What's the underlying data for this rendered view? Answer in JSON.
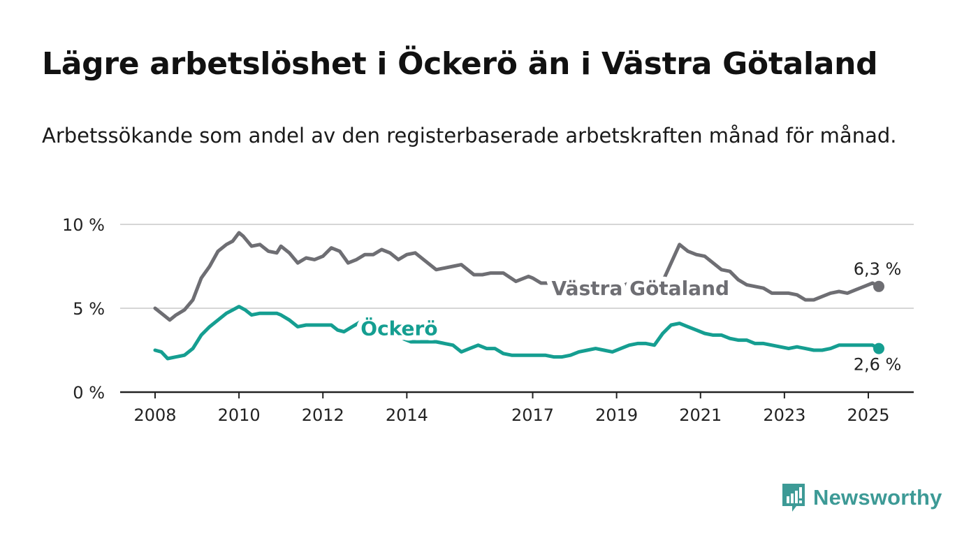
{
  "header": {
    "title": "Lägre arbetslöshet i Öckerö än i Västra Götaland",
    "subtitle": "Arbetssökande som andel av den registerbaserade arbetskraften månad för månad."
  },
  "branding": {
    "name": "Newsworthy",
    "icon": "bar-chart-speech-bubble-icon",
    "color": "#3d9a96"
  },
  "chart_data": {
    "type": "line",
    "title": "Lägre arbetslöshet i Öckerö än i Västra Götaland",
    "subtitle": "Arbetssökande som andel av den registerbaserade arbetskraften månad för månad.",
    "xlabel": "",
    "ylabel": "",
    "ylim": [
      0,
      10
    ],
    "yticks": [
      0,
      5,
      10
    ],
    "ytick_labels": [
      "0 %",
      "5 %",
      "10 %"
    ],
    "xlim": [
      2008.0,
      2025.5
    ],
    "xticks": [
      2008,
      2010,
      2012,
      2014,
      2017,
      2019,
      2021,
      2023,
      2025
    ],
    "xtick_labels": [
      "2008",
      "2010",
      "2012",
      "2014",
      "2017",
      "2019",
      "2021",
      "2023",
      "2025"
    ],
    "grid": "horizontal",
    "legend": "inline labels on lines",
    "series": [
      {
        "name": "Västra Götaland",
        "color": "#6e6e73",
        "end_label": "6,3 %",
        "x": [
          2008.0,
          2008.2,
          2008.35,
          2008.5,
          2008.7,
          2008.9,
          2009.1,
          2009.3,
          2009.5,
          2009.7,
          2009.85,
          2010.0,
          2010.1,
          2010.3,
          2010.5,
          2010.7,
          2010.9,
          2011.0,
          2011.2,
          2011.4,
          2011.6,
          2011.8,
          2012.0,
          2012.2,
          2012.4,
          2012.6,
          2012.8,
          2013.0,
          2013.2,
          2013.4,
          2013.6,
          2013.8,
          2014.0,
          2014.2,
          2014.4,
          2014.7,
          2014.9,
          2015.1,
          2015.3,
          2015.6,
          2015.8,
          2016.0,
          2016.3,
          2016.6,
          2016.9,
          2017.0,
          2017.2,
          2017.5,
          2017.7,
          2017.9,
          2018.1,
          2018.3,
          2018.5,
          2018.7,
          2018.9,
          2019.1,
          2019.3,
          2019.5,
          2019.7,
          2019.9,
          2020.1,
          2020.3,
          2020.5,
          2020.7,
          2020.9,
          2021.1,
          2021.3,
          2021.5,
          2021.7,
          2021.9,
          2022.1,
          2022.3,
          2022.5,
          2022.7,
          2022.9,
          2023.1,
          2023.3,
          2023.5,
          2023.7,
          2023.9,
          2024.1,
          2024.3,
          2024.5,
          2024.7,
          2024.9,
          2025.1,
          2025.25
        ],
        "values": [
          5.0,
          4.6,
          4.3,
          4.6,
          4.9,
          5.5,
          6.8,
          7.5,
          8.4,
          8.8,
          9.0,
          9.5,
          9.3,
          8.7,
          8.8,
          8.4,
          8.3,
          8.7,
          8.3,
          7.7,
          8.0,
          7.9,
          8.1,
          8.6,
          8.4,
          7.7,
          7.9,
          8.2,
          8.2,
          8.5,
          8.3,
          7.9,
          8.2,
          8.3,
          7.9,
          7.3,
          7.4,
          7.5,
          7.6,
          7.0,
          7.0,
          7.1,
          7.1,
          6.6,
          6.9,
          6.8,
          6.5,
          6.5,
          6.3,
          6.2,
          6.2,
          6.3,
          6.3,
          6.4,
          6.5,
          6.3,
          6.5,
          6.6,
          6.5,
          6.4,
          6.6,
          7.7,
          8.8,
          8.4,
          8.2,
          8.1,
          7.7,
          7.3,
          7.2,
          6.7,
          6.4,
          6.3,
          6.2,
          5.9,
          5.9,
          5.9,
          5.8,
          5.5,
          5.5,
          5.7,
          5.9,
          6.0,
          5.9,
          6.1,
          6.3,
          6.5,
          6.3
        ]
      },
      {
        "name": "Öckerö",
        "color": "#159e91",
        "end_label": "2,6 %",
        "x": [
          2008.0,
          2008.15,
          2008.3,
          2008.5,
          2008.7,
          2008.9,
          2009.1,
          2009.3,
          2009.5,
          2009.7,
          2009.85,
          2010.0,
          2010.15,
          2010.3,
          2010.5,
          2010.7,
          2010.9,
          2011.0,
          2011.2,
          2011.4,
          2011.6,
          2011.8,
          2012.0,
          2012.2,
          2012.35,
          2012.5,
          2012.7,
          2012.9,
          2013.1,
          2013.3,
          2013.5,
          2013.7,
          2013.9,
          2014.1,
          2014.3,
          2014.5,
          2014.7,
          2014.9,
          2015.1,
          2015.3,
          2015.5,
          2015.7,
          2015.9,
          2016.1,
          2016.3,
          2016.5,
          2016.7,
          2016.9,
          2017.1,
          2017.3,
          2017.5,
          2017.7,
          2017.9,
          2018.1,
          2018.3,
          2018.5,
          2018.7,
          2018.9,
          2019.1,
          2019.3,
          2019.5,
          2019.7,
          2019.9,
          2020.1,
          2020.3,
          2020.5,
          2020.7,
          2020.9,
          2021.1,
          2021.3,
          2021.5,
          2021.7,
          2021.9,
          2022.1,
          2022.3,
          2022.5,
          2022.7,
          2022.9,
          2023.1,
          2023.3,
          2023.5,
          2023.7,
          2023.9,
          2024.1,
          2024.3,
          2024.5,
          2024.7,
          2024.9,
          2025.1,
          2025.25
        ],
        "values": [
          2.5,
          2.4,
          2.0,
          2.1,
          2.2,
          2.6,
          3.4,
          3.9,
          4.3,
          4.7,
          4.9,
          5.1,
          4.9,
          4.6,
          4.7,
          4.7,
          4.7,
          4.6,
          4.3,
          3.9,
          4.0,
          4.0,
          4.0,
          4.0,
          3.7,
          3.6,
          3.9,
          4.2,
          4.0,
          3.8,
          3.5,
          3.4,
          3.2,
          3.0,
          3.0,
          3.0,
          3.0,
          2.9,
          2.8,
          2.4,
          2.6,
          2.8,
          2.6,
          2.6,
          2.3,
          2.2,
          2.2,
          2.2,
          2.2,
          2.2,
          2.1,
          2.1,
          2.2,
          2.4,
          2.5,
          2.6,
          2.5,
          2.4,
          2.6,
          2.8,
          2.9,
          2.9,
          2.8,
          3.5,
          4.0,
          4.1,
          3.9,
          3.7,
          3.5,
          3.4,
          3.4,
          3.2,
          3.1,
          3.1,
          2.9,
          2.9,
          2.8,
          2.7,
          2.6,
          2.7,
          2.6,
          2.5,
          2.5,
          2.6,
          2.8,
          2.8,
          2.8,
          2.8,
          2.8,
          2.6
        ]
      }
    ]
  }
}
